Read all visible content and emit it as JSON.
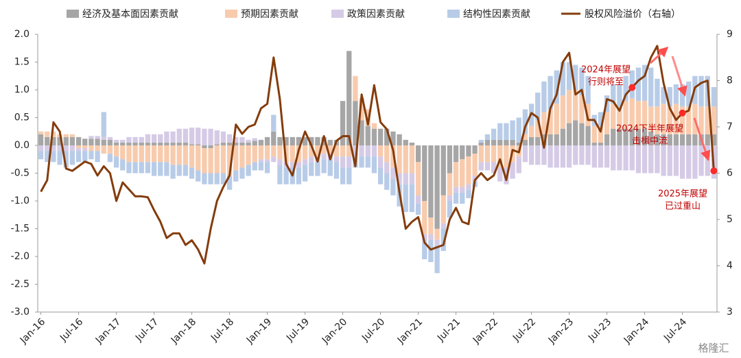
{
  "chart_data": {
    "type": "stacked-bar-line",
    "legend": "top",
    "categories": [
      "Jan-16",
      null,
      null,
      null,
      null,
      null,
      "Jul-16",
      null,
      null,
      null,
      null,
      null,
      "Jan-17",
      null,
      null,
      null,
      null,
      null,
      "Jul-17",
      null,
      null,
      null,
      null,
      null,
      "Jan-18",
      null,
      null,
      null,
      null,
      null,
      "Jul-18",
      null,
      null,
      null,
      null,
      null,
      "Jan-19",
      null,
      null,
      null,
      null,
      null,
      "Jul-19",
      null,
      null,
      null,
      null,
      null,
      "Jan-20",
      null,
      null,
      null,
      null,
      null,
      "Jul-20",
      null,
      null,
      null,
      null,
      null,
      "Jan-21",
      null,
      null,
      null,
      null,
      null,
      "Jul-21",
      null,
      null,
      null,
      null,
      null,
      "Jan-22",
      null,
      null,
      null,
      null,
      null,
      "Jul-22",
      null,
      null,
      null,
      null,
      null,
      "Jan-23",
      null,
      null,
      null,
      null,
      null,
      "Jul-23",
      null,
      null,
      null,
      null,
      null,
      "Jan-24",
      null,
      null,
      null,
      null,
      null,
      "Jul-24",
      null,
      null,
      null,
      null,
      null
    ],
    "series": [
      {
        "name": "经济及基本面因素贡献",
        "color": "#a6a6a6",
        "values": [
          0.2,
          0.15,
          0.15,
          0.15,
          0.15,
          0.15,
          0.15,
          0.12,
          0.12,
          0.12,
          0.1,
          0.1,
          0.05,
          0.05,
          0.05,
          0.05,
          0.05,
          0.05,
          0.05,
          0.05,
          0.05,
          0.05,
          0.05,
          0.05,
          0.02,
          0.02,
          -0.05,
          -0.05,
          0.02,
          0.05,
          0.05,
          0.05,
          0.05,
          0.05,
          0.08,
          0.1,
          0.15,
          0.25,
          0.15,
          0.15,
          0.15,
          0.15,
          0.15,
          0.15,
          0.15,
          0.15,
          0.1,
          0.1,
          0.8,
          1.7,
          0.8,
          0.45,
          0.35,
          0.3,
          0.3,
          0.3,
          0.25,
          0.2,
          0.1,
          0.05,
          -0.3,
          -1.0,
          -1.3,
          -1.5,
          -0.9,
          -0.5,
          -0.3,
          -0.25,
          -0.2,
          -0.15,
          0.05,
          0.1,
          0.1,
          0.1,
          0.1,
          0.1,
          0.05,
          0.1,
          0.15,
          0.15,
          0.2,
          0.2,
          0.2,
          0.3,
          0.4,
          0.45,
          0.4,
          0.35,
          0.05,
          0.05,
          0.2,
          0.3,
          0.3,
          0.3,
          0.3,
          0.3,
          0.3,
          0.25,
          0.2,
          0.2,
          0.2,
          0.2,
          0.2,
          0.2,
          0.2,
          0.2,
          0.2,
          0.2
        ]
      },
      {
        "name": "预期因素贡献",
        "color": "#f8cbad",
        "values": [
          0.05,
          0.1,
          0.1,
          0.05,
          0.05,
          0.05,
          -0.05,
          -0.05,
          -0.1,
          -0.1,
          -0.15,
          -0.15,
          -0.2,
          -0.25,
          -0.3,
          -0.3,
          -0.3,
          -0.3,
          -0.3,
          -0.3,
          -0.3,
          -0.35,
          -0.35,
          -0.35,
          -0.4,
          -0.45,
          -0.45,
          -0.45,
          -0.5,
          -0.5,
          -0.55,
          -0.45,
          -0.4,
          -0.35,
          -0.3,
          -0.25,
          -0.25,
          -0.2,
          -0.25,
          -0.3,
          -0.3,
          -0.3,
          -0.25,
          -0.2,
          -0.2,
          -0.15,
          -0.15,
          -0.2,
          -0.2,
          -0.2,
          0.45,
          0.4,
          0.3,
          0.1,
          -0.2,
          -0.3,
          -0.4,
          -0.5,
          -0.5,
          -0.5,
          -0.6,
          -0.6,
          -0.3,
          -0.2,
          -0.5,
          -0.4,
          -0.45,
          -0.5,
          -0.5,
          -0.4,
          -0.3,
          -0.3,
          -0.3,
          -0.4,
          -0.4,
          -0.3,
          -0.2,
          0.1,
          0.2,
          0.3,
          0.4,
          0.45,
          0.55,
          0.6,
          0.6,
          0.55,
          0.5,
          0.4,
          0.3,
          0.3,
          0.4,
          0.45,
          0.4,
          0.5,
          0.55,
          0.5,
          0.5,
          0.45,
          0.5,
          0.55,
          0.5,
          0.55,
          0.5,
          0.5,
          0.55,
          0.5,
          0.5,
          0.5
        ]
      },
      {
        "name": "政策因素贡献",
        "color": "#d5cbe6",
        "values": [
          -0.1,
          -0.1,
          -0.1,
          -0.1,
          -0.1,
          -0.1,
          -0.05,
          -0.05,
          0.05,
          0.05,
          0.05,
          0.05,
          0.05,
          0.05,
          0.1,
          0.1,
          0.1,
          0.15,
          0.15,
          0.15,
          0.2,
          0.2,
          0.25,
          0.25,
          0.3,
          0.3,
          0.3,
          0.3,
          0.25,
          0.2,
          0.15,
          0.1,
          0.1,
          0.05,
          0.05,
          -0.05,
          -0.05,
          -0.1,
          -0.1,
          -0.1,
          -0.1,
          -0.1,
          -0.1,
          -0.1,
          -0.1,
          -0.1,
          -0.1,
          -0.1,
          -0.2,
          -0.2,
          -0.2,
          -0.2,
          -0.2,
          -0.2,
          -0.2,
          -0.2,
          -0.2,
          -0.2,
          -0.2,
          -0.2,
          -0.15,
          -0.15,
          -0.1,
          -0.1,
          -0.1,
          -0.1,
          -0.1,
          -0.1,
          -0.1,
          -0.1,
          -0.15,
          -0.15,
          -0.2,
          -0.25,
          -0.3,
          -0.3,
          -0.3,
          -0.3,
          -0.35,
          -0.35,
          -0.35,
          -0.4,
          -0.4,
          -0.4,
          -0.4,
          -0.35,
          -0.35,
          -0.35,
          -0.4,
          -0.4,
          -0.4,
          -0.45,
          -0.45,
          -0.45,
          -0.45,
          -0.5,
          -0.5,
          -0.5,
          -0.5,
          -0.55,
          -0.55,
          -0.55,
          -0.6,
          -0.6,
          -0.6,
          -0.55,
          -0.55,
          -0.6
        ]
      },
      {
        "name": "结构性因素贡献",
        "color": "#b8cce8",
        "values": [
          -0.15,
          -0.2,
          -0.2,
          -0.25,
          -0.3,
          -0.25,
          -0.2,
          -0.2,
          -0.15,
          -0.2,
          0.45,
          -0.15,
          -0.2,
          -0.2,
          -0.2,
          -0.2,
          -0.2,
          -0.2,
          -0.25,
          -0.25,
          -0.25,
          -0.25,
          -0.2,
          -0.2,
          -0.2,
          -0.2,
          -0.2,
          -0.2,
          -0.2,
          -0.2,
          -0.25,
          -0.2,
          -0.2,
          -0.2,
          -0.15,
          -0.15,
          -0.2,
          0.3,
          -0.35,
          -0.3,
          -0.3,
          -0.3,
          -0.3,
          -0.25,
          -0.25,
          -0.25,
          -0.3,
          -0.3,
          -0.3,
          -0.3,
          -0.2,
          -0.2,
          -0.2,
          -0.3,
          -0.3,
          -0.3,
          -0.3,
          -0.4,
          -0.5,
          -0.5,
          -0.2,
          -0.3,
          -0.4,
          -0.5,
          -0.4,
          -0.3,
          -0.2,
          -0.2,
          -0.15,
          -0.1,
          0.05,
          0.1,
          0.2,
          0.3,
          0.3,
          0.35,
          0.45,
          0.45,
          0.4,
          0.5,
          0.55,
          0.6,
          0.6,
          0.6,
          0.5,
          0.45,
          0.5,
          0.5,
          0.2,
          0.25,
          0.3,
          0.35,
          0.4,
          0.45,
          0.5,
          0.6,
          0.65,
          0.7,
          0.5,
          0.3,
          0.35,
          0.35,
          0.4,
          0.45,
          0.5,
          0.55,
          0.55,
          0.35
        ]
      },
      {
        "name": "股权风险溢价（右轴）",
        "color": "#843c0c",
        "axis": "y2",
        "values": [
          5.6,
          5.85,
          7.1,
          6.9,
          6.1,
          6.05,
          6.15,
          6.25,
          6.2,
          5.95,
          6.15,
          6.0,
          5.4,
          5.8,
          5.65,
          5.5,
          5.5,
          5.48,
          5.2,
          4.95,
          4.6,
          4.7,
          4.7,
          4.45,
          4.55,
          4.35,
          4.05,
          4.8,
          5.4,
          5.7,
          5.95,
          7.05,
          6.85,
          7.0,
          7.05,
          7.4,
          7.5,
          8.5,
          7.6,
          6.2,
          5.95,
          6.5,
          6.9,
          6.6,
          6.25,
          6.8,
          6.3,
          6.7,
          6.8,
          6.8,
          6.15,
          7.7,
          7.05,
          7.9,
          7.1,
          6.95,
          6.5,
          5.6,
          4.8,
          4.95,
          5.05,
          4.5,
          4.35,
          4.4,
          4.45,
          5.0,
          5.25,
          4.95,
          4.9,
          5.85,
          6.0,
          5.85,
          5.95,
          6.3,
          5.85,
          6.5,
          6.45,
          7.0,
          7.3,
          7.2,
          6.55,
          7.4,
          7.7,
          8.4,
          8.6,
          7.7,
          7.8,
          7.15,
          7.15,
          6.9,
          7.6,
          7.55,
          7.35,
          7.7,
          7.85,
          8.0,
          8.1,
          8.5,
          8.75,
          7.95,
          7.4,
          7.15,
          7.3,
          7.35,
          7.85,
          7.95,
          8.0,
          6.05
        ]
      }
    ],
    "ylim": [
      -3.0,
      2.0
    ],
    "yticks": [
      {
        "value": -3,
        "label": "-3.0"
      },
      {
        "value": -2.5,
        "label": "-2.5"
      },
      {
        "value": -2,
        "label": "-2.0"
      },
      {
        "value": -1.5,
        "label": "-1.5"
      },
      {
        "value": -1,
        "label": "-1.0"
      },
      {
        "value": -0.5,
        "label": "-0.5"
      },
      {
        "value": 0,
        "label": "0.0"
      },
      {
        "value": 0.5,
        "label": "0.5"
      },
      {
        "value": 1,
        "label": "1.0"
      },
      {
        "value": 1.5,
        "label": "1.5"
      },
      {
        "value": 2,
        "label": "2.0"
      }
    ],
    "y2lim": [
      3,
      9
    ],
    "y2ticks": [
      3,
      4,
      5,
      6,
      7,
      8,
      9
    ],
    "annotations": [
      {
        "lines": [
          "2024年展望",
          "行则将至"
        ]
      },
      {
        "lines": [
          "2024下半年展望",
          "击楫中流"
        ]
      },
      {
        "lines": [
          "2025年展望",
          "已过重山"
        ]
      }
    ],
    "watermark": "格隆汇"
  }
}
